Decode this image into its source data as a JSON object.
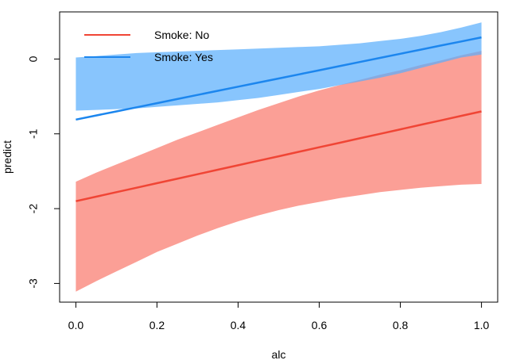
{
  "chart_data": {
    "type": "line",
    "title": "",
    "xlabel": "alc",
    "ylabel": "predict",
    "xlim": [
      -0.04,
      1.04
    ],
    "ylim": [
      -3.25,
      0.63
    ],
    "xticks": [
      0.0,
      0.2,
      0.4,
      0.6,
      0.8,
      1.0
    ],
    "xtick_labels": [
      "0.0",
      "0.2",
      "0.4",
      "0.6",
      "0.8",
      "1.0"
    ],
    "yticks": [
      0,
      -1,
      -2,
      -3
    ],
    "ytick_labels": [
      "0",
      "-1",
      "-2",
      "-3"
    ],
    "grid": false,
    "legend_position": "top-left",
    "x": [
      0.0,
      0.05,
      0.1,
      0.15,
      0.2,
      0.25,
      0.3,
      0.35,
      0.4,
      0.45,
      0.5,
      0.55,
      0.6,
      0.65,
      0.7,
      0.75,
      0.8,
      0.85,
      0.9,
      0.95,
      1.0
    ],
    "series": [
      {
        "name": "Smoke: No",
        "line_color": "#f04535",
        "band_color": "#fa7a6e",
        "fit": [
          -1.9,
          -1.84,
          -1.78,
          -1.72,
          -1.66,
          -1.6,
          -1.54,
          -1.48,
          -1.42,
          -1.36,
          -1.3,
          -1.24,
          -1.18,
          -1.12,
          -1.06,
          -1.0,
          -0.94,
          -0.88,
          -0.82,
          -0.76,
          -0.7
        ],
        "lower": [
          -3.11,
          -2.97,
          -2.84,
          -2.71,
          -2.58,
          -2.47,
          -2.36,
          -2.26,
          -2.17,
          -2.09,
          -2.02,
          -1.96,
          -1.91,
          -1.86,
          -1.82,
          -1.78,
          -1.75,
          -1.72,
          -1.7,
          -1.68,
          -1.67
        ],
        "upper": [
          -1.64,
          -1.52,
          -1.41,
          -1.3,
          -1.19,
          -1.08,
          -0.98,
          -0.88,
          -0.78,
          -0.68,
          -0.59,
          -0.5,
          -0.42,
          -0.35,
          -0.28,
          -0.21,
          -0.15,
          -0.08,
          -0.02,
          0.05,
          0.11
        ]
      },
      {
        "name": "Smoke: Yes",
        "line_color": "#1c86ee",
        "band_color": "#5aaefc",
        "fit": [
          -0.81,
          -0.755,
          -0.7,
          -0.645,
          -0.59,
          -0.535,
          -0.48,
          -0.425,
          -0.37,
          -0.315,
          -0.26,
          -0.205,
          -0.15,
          -0.095,
          -0.04,
          0.015,
          0.07,
          0.125,
          0.18,
          0.235,
          0.29
        ],
        "lower": [
          -0.69,
          -0.68,
          -0.67,
          -0.66,
          -0.64,
          -0.62,
          -0.6,
          -0.58,
          -0.55,
          -0.52,
          -0.48,
          -0.44,
          -0.4,
          -0.35,
          -0.3,
          -0.25,
          -0.19,
          -0.12,
          -0.05,
          0.02,
          0.06
        ],
        "upper": [
          0.02,
          0.04,
          0.06,
          0.08,
          0.09,
          0.1,
          0.11,
          0.12,
          0.13,
          0.14,
          0.15,
          0.16,
          0.17,
          0.19,
          0.21,
          0.24,
          0.27,
          0.31,
          0.36,
          0.42,
          0.49
        ]
      }
    ]
  }
}
